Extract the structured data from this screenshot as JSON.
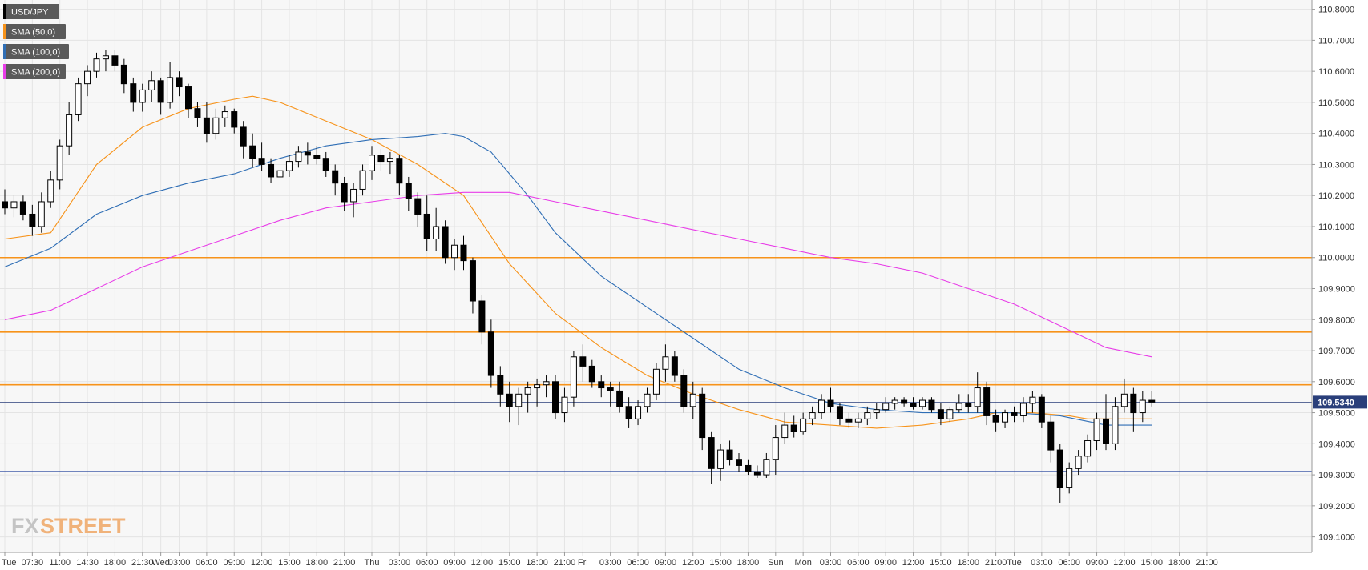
{
  "chart_data": {
    "type": "candlestick",
    "symbol": "USD/JPY",
    "legend": [
      {
        "label": "USD/JPY",
        "color": "#000000"
      },
      {
        "label": "SMA (50,0)",
        "color": "#f7931a"
      },
      {
        "label": "SMA (100,0)",
        "color": "#2f6eb5"
      },
      {
        "label": "SMA (200,0)",
        "color": "#e83de8"
      }
    ],
    "ylim": [
      109.05,
      110.83
    ],
    "y_ticks": [
      "110.8000",
      "110.7000",
      "110.6000",
      "110.5000",
      "110.4000",
      "110.3000",
      "110.2000",
      "110.1000",
      "110.0000",
      "109.9000",
      "109.8000",
      "109.7000",
      "109.6000",
      "109.5000",
      "109.4000",
      "109.3000",
      "109.2000",
      "109.1000"
    ],
    "x_ticks": [
      "Tue",
      "07:30",
      "11:00",
      "14:30",
      "18:00",
      "21:30",
      "Wed",
      "03:00",
      "06:00",
      "09:00",
      "12:00",
      "15:00",
      "18:00",
      "21:00",
      "Thu",
      "03:00",
      "06:00",
      "09:00",
      "12:00",
      "15:00",
      "18:00",
      "21:00",
      "Fri",
      "03:00",
      "06:00",
      "09:00",
      "12:00",
      "15:00",
      "18:00",
      "Sun",
      "Mon",
      "03:00",
      "06:00",
      "09:00",
      "12:00",
      "15:00",
      "18:00",
      "21:00",
      "Tue",
      "03:00",
      "06:00",
      "09:00",
      "12:00",
      "15:00",
      "18:00",
      "21:00"
    ],
    "x_tick_pos": [
      0,
      3,
      6,
      9,
      12,
      15,
      17,
      19,
      22,
      25,
      28,
      31,
      34,
      37,
      40,
      43,
      46,
      49,
      52,
      55,
      58,
      61,
      63,
      66,
      69,
      72,
      75,
      78,
      81,
      84,
      87,
      90,
      93,
      96,
      99,
      102,
      105,
      108,
      110,
      113,
      116,
      119,
      122,
      125,
      128,
      131
    ],
    "horizontal_levels": [
      {
        "value": 110.0,
        "color": "#f7931a"
      },
      {
        "value": 109.76,
        "color": "#f7931a"
      },
      {
        "value": 109.59,
        "color": "#f7931a"
      },
      {
        "value": 109.31,
        "color": "#1f3f9a"
      }
    ],
    "last_price": {
      "value": 109.534,
      "label": "109.5340"
    },
    "ohlc": [
      [
        110.18,
        110.22,
        110.14,
        110.16
      ],
      [
        110.16,
        110.2,
        110.13,
        110.18
      ],
      [
        110.18,
        110.2,
        110.12,
        110.14
      ],
      [
        110.14,
        110.17,
        110.07,
        110.1
      ],
      [
        110.1,
        110.21,
        110.08,
        110.18
      ],
      [
        110.18,
        110.28,
        110.16,
        110.25
      ],
      [
        110.25,
        110.38,
        110.22,
        110.36
      ],
      [
        110.36,
        110.5,
        110.33,
        110.46
      ],
      [
        110.46,
        110.58,
        110.44,
        110.56
      ],
      [
        110.56,
        110.62,
        110.52,
        110.6
      ],
      [
        110.6,
        110.66,
        110.58,
        110.64
      ],
      [
        110.64,
        110.67,
        110.6,
        110.65
      ],
      [
        110.65,
        110.67,
        110.6,
        110.62
      ],
      [
        110.62,
        110.64,
        110.53,
        110.56
      ],
      [
        110.56,
        110.58,
        110.47,
        110.5
      ],
      [
        110.5,
        110.56,
        110.47,
        110.54
      ],
      [
        110.54,
        110.6,
        110.5,
        110.57
      ],
      [
        110.57,
        110.58,
        110.46,
        110.5
      ],
      [
        110.5,
        110.63,
        110.48,
        110.58
      ],
      [
        110.58,
        110.6,
        110.52,
        110.55
      ],
      [
        110.55,
        110.56,
        110.45,
        110.48
      ],
      [
        110.48,
        110.5,
        110.42,
        110.45
      ],
      [
        110.45,
        110.5,
        110.37,
        110.4
      ],
      [
        110.4,
        110.48,
        110.38,
        110.45
      ],
      [
        110.45,
        110.49,
        110.42,
        110.47
      ],
      [
        110.47,
        110.48,
        110.4,
        110.42
      ],
      [
        110.42,
        110.44,
        110.32,
        110.36
      ],
      [
        110.36,
        110.4,
        110.29,
        110.32
      ],
      [
        110.32,
        110.37,
        110.28,
        110.3
      ],
      [
        110.3,
        110.32,
        110.24,
        110.26
      ],
      [
        110.26,
        110.3,
        110.24,
        110.28
      ],
      [
        110.28,
        110.33,
        110.26,
        110.31
      ],
      [
        110.31,
        110.36,
        110.29,
        110.34
      ],
      [
        110.34,
        110.37,
        110.3,
        110.33
      ],
      [
        110.33,
        110.36,
        110.3,
        110.32
      ],
      [
        110.32,
        110.34,
        110.26,
        110.28
      ],
      [
        110.28,
        110.3,
        110.2,
        110.24
      ],
      [
        110.24,
        110.26,
        110.15,
        110.18
      ],
      [
        110.18,
        110.24,
        110.13,
        110.22
      ],
      [
        110.22,
        110.3,
        110.2,
        110.28
      ],
      [
        110.28,
        110.36,
        110.25,
        110.33
      ],
      [
        110.33,
        110.35,
        110.28,
        110.31
      ],
      [
        110.31,
        110.34,
        110.27,
        110.32
      ],
      [
        110.32,
        110.33,
        110.2,
        110.24
      ],
      [
        110.24,
        110.26,
        110.15,
        110.19
      ],
      [
        110.19,
        110.21,
        110.1,
        110.14
      ],
      [
        110.14,
        110.2,
        110.02,
        110.06
      ],
      [
        110.06,
        110.16,
        110.02,
        110.1
      ],
      [
        110.1,
        110.12,
        109.98,
        110.0
      ],
      [
        110.0,
        110.06,
        109.96,
        110.04
      ],
      [
        110.04,
        110.07,
        109.96,
        109.99
      ],
      [
        109.99,
        110.0,
        109.82,
        109.86
      ],
      [
        109.86,
        109.88,
        109.72,
        109.76
      ],
      [
        109.76,
        109.8,
        109.58,
        109.62
      ],
      [
        109.62,
        109.65,
        109.52,
        109.56
      ],
      [
        109.56,
        109.6,
        109.47,
        109.52
      ],
      [
        109.52,
        109.58,
        109.46,
        109.56
      ],
      [
        109.56,
        109.6,
        109.5,
        109.58
      ],
      [
        109.58,
        109.61,
        109.52,
        109.59
      ],
      [
        109.59,
        109.62,
        109.55,
        109.6
      ],
      [
        109.6,
        109.62,
        109.48,
        109.5
      ],
      [
        109.5,
        109.58,
        109.47,
        109.55
      ],
      [
        109.55,
        109.7,
        109.52,
        109.68
      ],
      [
        109.68,
        109.72,
        109.6,
        109.65
      ],
      [
        109.65,
        109.67,
        109.58,
        109.6
      ],
      [
        109.6,
        109.62,
        109.55,
        109.58
      ],
      [
        109.58,
        109.6,
        109.52,
        109.57
      ],
      [
        109.57,
        109.6,
        109.5,
        109.52
      ],
      [
        109.52,
        109.55,
        109.45,
        109.48
      ],
      [
        109.48,
        109.54,
        109.46,
        109.52
      ],
      [
        109.52,
        109.58,
        109.5,
        109.56
      ],
      [
        109.56,
        109.66,
        109.54,
        109.64
      ],
      [
        109.64,
        109.72,
        109.6,
        109.68
      ],
      [
        109.68,
        109.7,
        109.6,
        109.62
      ],
      [
        109.62,
        109.64,
        109.5,
        109.52
      ],
      [
        109.52,
        109.6,
        109.48,
        109.56
      ],
      [
        109.56,
        109.58,
        109.38,
        109.42
      ],
      [
        109.42,
        109.44,
        109.27,
        109.32
      ],
      [
        109.32,
        109.4,
        109.28,
        109.38
      ],
      [
        109.38,
        109.41,
        109.33,
        109.35
      ],
      [
        109.35,
        109.37,
        109.31,
        109.33
      ],
      [
        109.33,
        109.35,
        109.3,
        109.31
      ],
      [
        109.31,
        109.33,
        109.29,
        109.3
      ],
      [
        109.3,
        109.37,
        109.29,
        109.35
      ],
      [
        109.35,
        109.46,
        109.3,
        109.42
      ],
      [
        109.42,
        109.5,
        109.4,
        109.46
      ],
      [
        109.46,
        109.49,
        109.42,
        109.44
      ],
      [
        109.44,
        109.5,
        109.43,
        109.48
      ],
      [
        109.48,
        109.52,
        109.46,
        109.5
      ],
      [
        109.5,
        109.56,
        109.48,
        109.54
      ],
      [
        109.54,
        109.58,
        109.5,
        109.52
      ],
      [
        109.52,
        109.53,
        109.46,
        109.48
      ],
      [
        109.48,
        109.5,
        109.45,
        109.47
      ],
      [
        109.47,
        109.5,
        109.45,
        109.48
      ],
      [
        109.48,
        109.52,
        109.46,
        109.5
      ],
      [
        109.5,
        109.53,
        109.48,
        109.51
      ],
      [
        109.51,
        109.55,
        109.5,
        109.53
      ],
      [
        109.53,
        109.55,
        109.51,
        109.54
      ],
      [
        109.54,
        109.55,
        109.52,
        109.53
      ],
      [
        109.53,
        109.55,
        109.51,
        109.52
      ],
      [
        109.52,
        109.55,
        109.51,
        109.54
      ],
      [
        109.54,
        109.55,
        109.5,
        109.51
      ],
      [
        109.51,
        109.53,
        109.46,
        109.48
      ],
      [
        109.48,
        109.52,
        109.47,
        109.51
      ],
      [
        109.51,
        109.56,
        109.5,
        109.53
      ],
      [
        109.53,
        109.56,
        109.5,
        109.52
      ],
      [
        109.52,
        109.63,
        109.5,
        109.58
      ],
      [
        109.58,
        109.6,
        109.46,
        109.49
      ],
      [
        109.49,
        109.51,
        109.44,
        109.47
      ],
      [
        109.47,
        109.51,
        109.45,
        109.5
      ],
      [
        109.5,
        109.52,
        109.47,
        109.49
      ],
      [
        109.49,
        109.55,
        109.47,
        109.53
      ],
      [
        109.53,
        109.57,
        109.5,
        109.55
      ],
      [
        109.55,
        109.56,
        109.45,
        109.47
      ],
      [
        109.47,
        109.49,
        109.34,
        109.38
      ],
      [
        109.38,
        109.4,
        109.21,
        109.26
      ],
      [
        109.26,
        109.34,
        109.24,
        109.32
      ],
      [
        109.32,
        109.38,
        109.3,
        109.36
      ],
      [
        109.36,
        109.43,
        109.34,
        109.41
      ],
      [
        109.41,
        109.5,
        109.38,
        109.48
      ],
      [
        109.48,
        109.56,
        109.38,
        109.4
      ],
      [
        109.4,
        109.55,
        109.38,
        109.52
      ],
      [
        109.52,
        109.61,
        109.5,
        109.56
      ],
      [
        109.56,
        109.58,
        109.44,
        109.5
      ],
      [
        109.5,
        109.57,
        109.47,
        109.54
      ],
      [
        109.54,
        109.57,
        109.52,
        109.534
      ]
    ],
    "sma50": [
      [
        0,
        110.06
      ],
      [
        5,
        110.08
      ],
      [
        10,
        110.3
      ],
      [
        15,
        110.42
      ],
      [
        20,
        110.48
      ],
      [
        25,
        110.51
      ],
      [
        27,
        110.52
      ],
      [
        30,
        110.5
      ],
      [
        35,
        110.44
      ],
      [
        40,
        110.38
      ],
      [
        45,
        110.3
      ],
      [
        50,
        110.2
      ],
      [
        55,
        109.98
      ],
      [
        60,
        109.82
      ],
      [
        65,
        109.71
      ],
      [
        70,
        109.62
      ],
      [
        75,
        109.56
      ],
      [
        80,
        109.51
      ],
      [
        85,
        109.47
      ],
      [
        90,
        109.46
      ],
      [
        95,
        109.45
      ],
      [
        100,
        109.46
      ],
      [
        105,
        109.48
      ],
      [
        108,
        109.5
      ],
      [
        112,
        109.5
      ],
      [
        116,
        109.49
      ],
      [
        118,
        109.48
      ],
      [
        122,
        109.48
      ],
      [
        125,
        109.48
      ]
    ],
    "sma100": [
      [
        0,
        109.97
      ],
      [
        5,
        110.03
      ],
      [
        10,
        110.14
      ],
      [
        15,
        110.2
      ],
      [
        20,
        110.24
      ],
      [
        25,
        110.27
      ],
      [
        30,
        110.32
      ],
      [
        35,
        110.36
      ],
      [
        40,
        110.38
      ],
      [
        45,
        110.39
      ],
      [
        48,
        110.4
      ],
      [
        50,
        110.39
      ],
      [
        53,
        110.34
      ],
      [
        57,
        110.2
      ],
      [
        60,
        110.08
      ],
      [
        65,
        109.94
      ],
      [
        70,
        109.84
      ],
      [
        75,
        109.74
      ],
      [
        80,
        109.64
      ],
      [
        85,
        109.58
      ],
      [
        90,
        109.53
      ],
      [
        95,
        109.51
      ],
      [
        100,
        109.5
      ],
      [
        105,
        109.5
      ],
      [
        110,
        109.5
      ],
      [
        115,
        109.49
      ],
      [
        120,
        109.46
      ],
      [
        125,
        109.46
      ]
    ],
    "sma200": [
      [
        0,
        109.8
      ],
      [
        5,
        109.83
      ],
      [
        10,
        109.9
      ],
      [
        15,
        109.97
      ],
      [
        20,
        110.02
      ],
      [
        25,
        110.07
      ],
      [
        30,
        110.12
      ],
      [
        35,
        110.16
      ],
      [
        40,
        110.18
      ],
      [
        45,
        110.2
      ],
      [
        50,
        110.21
      ],
      [
        55,
        110.21
      ],
      [
        60,
        110.18
      ],
      [
        65,
        110.15
      ],
      [
        70,
        110.12
      ],
      [
        75,
        110.09
      ],
      [
        80,
        110.06
      ],
      [
        85,
        110.03
      ],
      [
        90,
        110.0
      ],
      [
        95,
        109.98
      ],
      [
        100,
        109.95
      ],
      [
        105,
        109.9
      ],
      [
        110,
        109.85
      ],
      [
        115,
        109.78
      ],
      [
        120,
        109.71
      ],
      [
        125,
        109.68
      ]
    ]
  },
  "branding": {
    "logo_fx": "FX",
    "logo_street": "STREET"
  }
}
